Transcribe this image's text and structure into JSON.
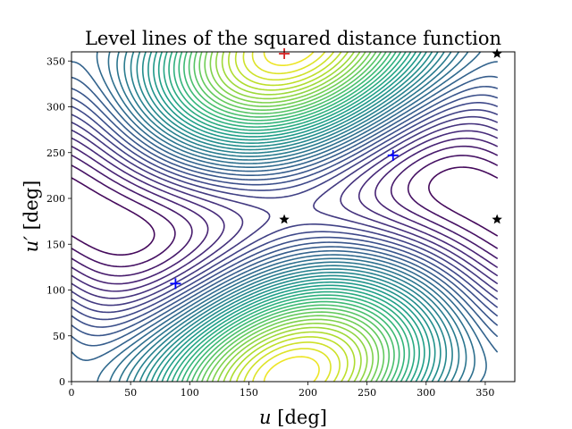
{
  "chart_data": {
    "type": "contour",
    "title": "Level lines of the squared distance function",
    "xlabel": "u [deg]",
    "xlabel_var": "u",
    "xlabel_unit": " [deg]",
    "ylabel": "u′ [deg]",
    "ylabel_var": "u′",
    "ylabel_unit": " [deg]",
    "xlim": [
      0,
      375
    ],
    "ylim": [
      0,
      360
    ],
    "x_ticks": [
      0,
      50,
      100,
      150,
      200,
      250,
      300,
      350
    ],
    "y_ticks": [
      0,
      50,
      100,
      150,
      200,
      250,
      300,
      350
    ],
    "grid": false,
    "colormap": "viridis",
    "level_count": 40,
    "markers": [
      {
        "kind": "max",
        "symbol": "+",
        "color": "#d62728",
        "x": 180,
        "y": 358
      },
      {
        "kind": "min",
        "symbol": "+",
        "color": "#0000ff",
        "x": 88,
        "y": 107
      },
      {
        "kind": "min",
        "symbol": "+",
        "color": "#0000ff",
        "x": 272,
        "y": 247
      },
      {
        "kind": "saddle",
        "symbol": "★",
        "color": "#000000",
        "x": 180,
        "y": 177
      },
      {
        "kind": "saddle",
        "symbol": "★",
        "color": "#000000",
        "x": 360,
        "y": 177
      },
      {
        "kind": "saddle",
        "symbol": "★",
        "color": "#000000",
        "x": 360,
        "y": 358
      }
    ]
  }
}
